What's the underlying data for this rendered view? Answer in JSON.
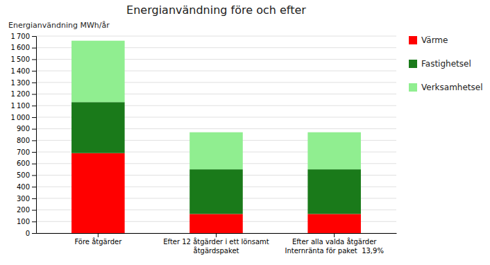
{
  "chart_data": {
    "type": "bar",
    "stacked": true,
    "title": "Energianvändning före och efter",
    "ylabel": "Energianvändning MWh/år",
    "categories": [
      "Före åtgärder",
      "Efter 12 åtgärder i ett lönsamt\nåtgärdspaket",
      "Efter alla valda åtgärder\nInternränta för paket  13,9%"
    ],
    "series": [
      {
        "name": "Värme",
        "color": "#ff0000",
        "values": [
          690,
          165,
          165
        ]
      },
      {
        "name": "Fastighetsel",
        "color": "#1a7a1a",
        "values": [
          440,
          385,
          385
        ]
      },
      {
        "name": "Verksamhetsel",
        "color": "#90ee90",
        "values": [
          530,
          320,
          320
        ]
      }
    ],
    "ylim": [
      0,
      1700
    ],
    "yticks": [
      0,
      100,
      200,
      300,
      400,
      500,
      600,
      700,
      800,
      900,
      {
        "value": 1000,
        "label": "1 000"
      },
      {
        "value": 1100,
        "label": "1 100"
      },
      {
        "value": 1200,
        "label": "1 200"
      },
      {
        "value": 1300,
        "label": "1 300"
      },
      {
        "value": 1400,
        "label": "1 400"
      },
      {
        "value": 1500,
        "label": "1 500"
      },
      {
        "value": 1600,
        "label": "1 600"
      },
      {
        "value": 1700,
        "label": "1 700"
      }
    ],
    "grid": true,
    "legend": "right"
  }
}
